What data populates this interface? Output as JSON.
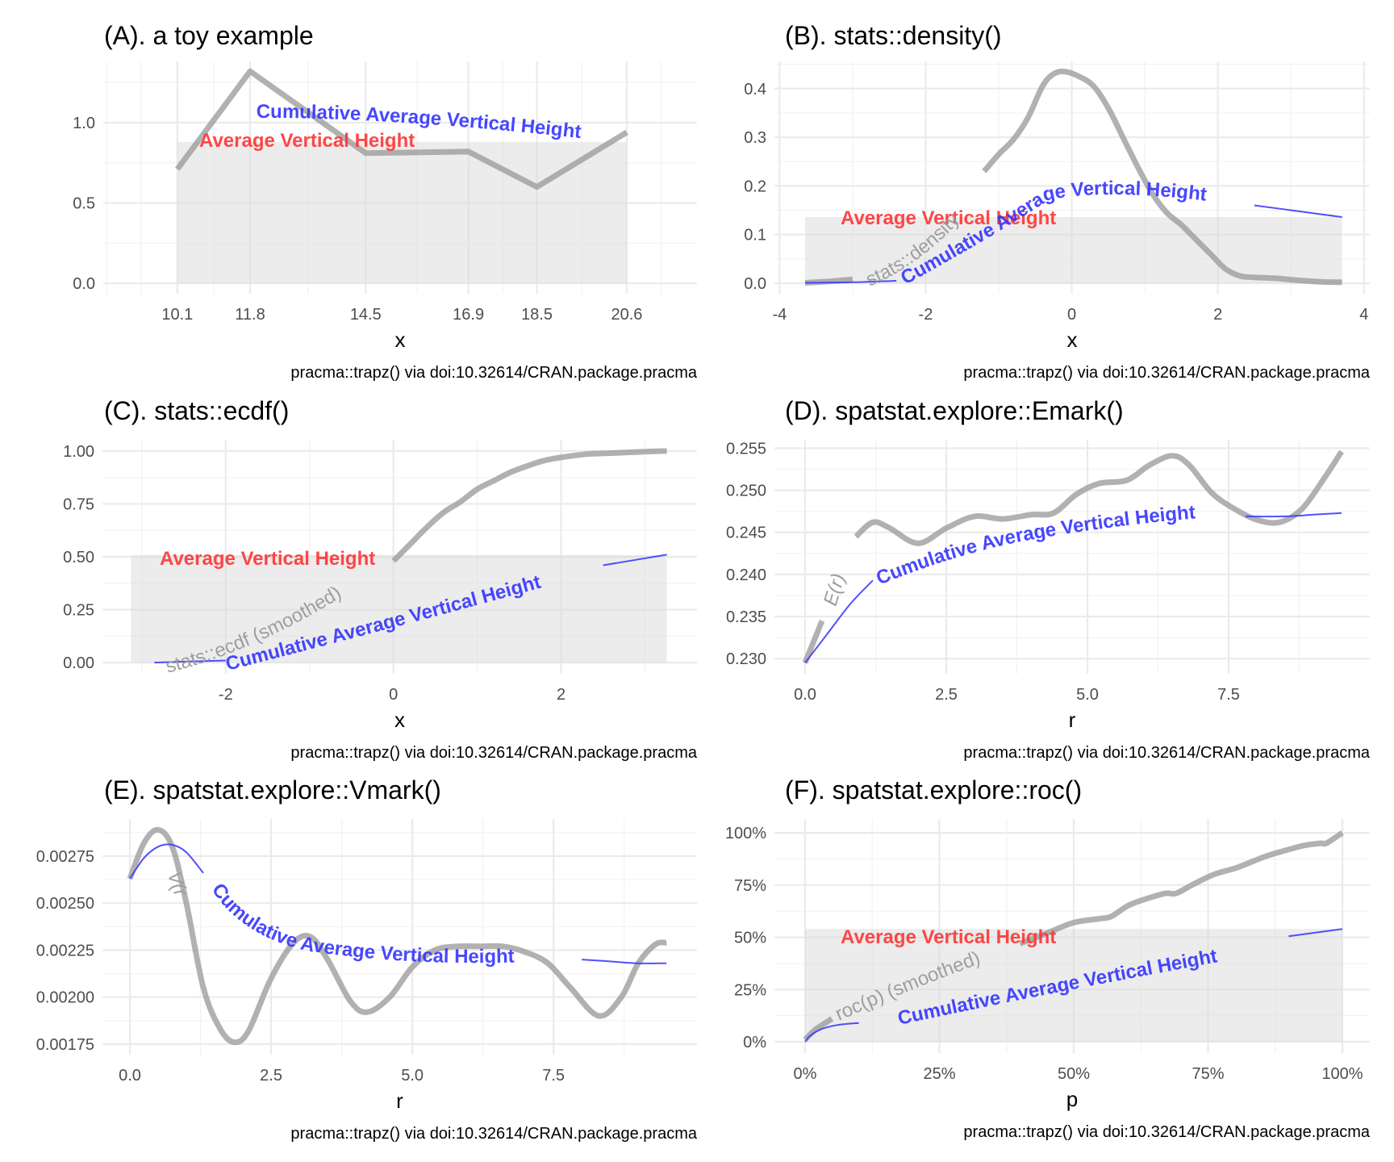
{
  "figure": {
    "caption": "pracma::trapz() via doi:10.32614/CRAN.package.pracma",
    "colors": {
      "curve": "#9e9e9e",
      "average_area": "#d9d9d9",
      "average_label": "#ff3333",
      "cumulative": "#3333ff",
      "grid": "#ebebeb"
    }
  },
  "chart_data": [
    {
      "id": "A",
      "type": "line",
      "title": "(A). a toy example",
      "xlabel": "x",
      "ylabel": "",
      "caption": "pracma::trapz() via doi:10.32614/CRAN.package.pracma",
      "grid": true,
      "xlim": [
        8.37,
        22.24
      ],
      "ylim": [
        -0.065,
        1.382
      ],
      "xticks": [
        10.1,
        11.8,
        14.5,
        16.9,
        18.5,
        20.6
      ],
      "xtick_labels": [
        "10.1",
        "11.8",
        "14.5",
        "16.9",
        "18.5",
        "20.6"
      ],
      "xminor": [
        8.45,
        9.25,
        10.95,
        13.15,
        15.7,
        17.7,
        19.55,
        21.4
      ],
      "yticks": [
        0.0,
        0.5,
        1.0
      ],
      "ytick_labels": [
        "0.0",
        "0.5",
        "1.0"
      ],
      "yminor": [
        0.25,
        0.75,
        1.25
      ],
      "curve": {
        "name": "",
        "x": [
          10.1,
          11.8,
          14.5,
          16.9,
          18.5,
          20.6
        ],
        "y": [
          0.71,
          1.32,
          0.81,
          0.82,
          0.6,
          0.94
        ]
      },
      "average": {
        "label": "Average Vertical Height",
        "value": 0.88,
        "xrange": [
          10.1,
          20.6
        ]
      },
      "cumulative": {
        "label": "Cumulative Average Vertical Height",
        "x": [],
        "y": []
      },
      "labels": {
        "average_label": "Average Vertical Height",
        "cumulative_label": "Cumulative Average Vertical Height"
      }
    },
    {
      "id": "B",
      "type": "line",
      "title": "(B). stats::density()",
      "xlabel": "x",
      "ylabel": "",
      "caption": "pracma::trapz() via doi:10.32614/CRAN.package.pracma",
      "grid": true,
      "xlim": [
        -4.07,
        4.08
      ],
      "ylim": [
        -0.0216,
        0.456
      ],
      "xticks": [
        -4,
        -2,
        0,
        2,
        4
      ],
      "xtick_labels": [
        "-4",
        "-2",
        "0",
        "2",
        "4"
      ],
      "xminor": [
        -3,
        -1,
        1,
        3
      ],
      "yticks": [
        0.0,
        0.1,
        0.2,
        0.3,
        0.4
      ],
      "ytick_labels": [
        "0.0",
        "0.1",
        "0.2",
        "0.3",
        "0.4"
      ],
      "yminor": [
        0.05,
        0.15,
        0.25,
        0.35,
        0.45
      ],
      "curve": {
        "name": "stats::density",
        "x": [
          -3.65,
          -3.3,
          -3.0,
          -2.7,
          -2.4,
          -2.0,
          -1.7,
          -1.4,
          -1.2,
          -1.0,
          -0.8,
          -0.6,
          -0.4,
          -0.25,
          -0.1,
          0.1,
          0.3,
          0.5,
          0.7,
          0.9,
          1.1,
          1.3,
          1.5,
          1.7,
          1.9,
          2.1,
          2.3,
          2.5,
          2.8,
          3.1,
          3.4,
          3.7
        ],
        "y": [
          0.001,
          0.004,
          0.008,
          0.02,
          0.04,
          0.08,
          0.13,
          0.19,
          0.23,
          0.265,
          0.295,
          0.34,
          0.405,
          0.43,
          0.435,
          0.425,
          0.405,
          0.36,
          0.3,
          0.24,
          0.185,
          0.145,
          0.12,
          0.09,
          0.06,
          0.03,
          0.015,
          0.012,
          0.01,
          0.006,
          0.003,
          0.002
        ]
      },
      "average": {
        "label": "Average Vertical Height",
        "value": 0.136,
        "xrange": [
          -3.65,
          3.7
        ]
      },
      "cumulative": {
        "label": "Cumulative Average Vertical Height",
        "x": [
          -3.65,
          -3.0,
          -2.4,
          -2.0,
          -1.6,
          -1.2,
          -0.8,
          -0.4,
          0.0,
          0.4,
          0.8,
          1.2,
          1.6,
          2.0,
          2.5,
          3.0,
          3.7
        ],
        "y": [
          0.001,
          0.002,
          0.005,
          0.012,
          0.025,
          0.045,
          0.075,
          0.11,
          0.145,
          0.165,
          0.175,
          0.18,
          0.178,
          0.172,
          0.16,
          0.15,
          0.136
        ]
      },
      "labels": {
        "average_label": "Average Vertical Height",
        "cumulative_label": "Cumulative Average Vertical Height",
        "curve_label": "stats::density"
      }
    },
    {
      "id": "C",
      "type": "line",
      "title": "(C). stats::ecdf()",
      "xlabel": "x",
      "ylabel": "",
      "caption": "pracma::trapz() via doi:10.32614/CRAN.package.pracma",
      "grid": true,
      "xlim": [
        -3.47,
        3.62
      ],
      "ylim": [
        -0.053,
        1.053
      ],
      "xticks": [
        -2,
        0,
        2
      ],
      "xtick_labels": [
        "-2",
        "0",
        "2"
      ],
      "xminor": [
        -3,
        -1,
        1,
        3
      ],
      "yticks": [
        0.0,
        0.25,
        0.5,
        0.75,
        1.0
      ],
      "ytick_labels": [
        "0.00",
        "0.25",
        "0.50",
        "0.75",
        "1.00"
      ],
      "yminor": [
        0.125,
        0.375,
        0.625,
        0.875
      ],
      "curve": {
        "name": "stats::ecdf (smoothed)",
        "x": [
          -3.13,
          -2.8,
          -2.4,
          -2.0,
          -1.6,
          -1.2,
          -0.8,
          -0.4,
          -0.15,
          0.0,
          0.2,
          0.4,
          0.6,
          0.8,
          1.0,
          1.2,
          1.4,
          1.6,
          1.8,
          2.0,
          2.3,
          2.6,
          3.0,
          3.26
        ],
        "y": [
          0.0,
          0.005,
          0.02,
          0.05,
          0.09,
          0.15,
          0.23,
          0.33,
          0.41,
          0.48,
          0.56,
          0.64,
          0.71,
          0.76,
          0.82,
          0.86,
          0.9,
          0.93,
          0.955,
          0.97,
          0.985,
          0.99,
          0.997,
          1.0
        ]
      },
      "average": {
        "label": "Average Vertical Height",
        "value": 0.508,
        "xrange": [
          -3.13,
          3.26
        ]
      },
      "cumulative": {
        "label": "Cumulative Average Vertical Height",
        "x": [
          -2.85,
          -2.0,
          -1.5,
          -1.0,
          -0.5,
          0.0,
          0.5,
          1.0,
          1.5,
          2.0,
          2.5,
          3.26
        ],
        "y": [
          0.0,
          0.01,
          0.04,
          0.08,
          0.13,
          0.19,
          0.26,
          0.33,
          0.39,
          0.43,
          0.46,
          0.51
        ]
      },
      "labels": {
        "average_label": "Average Vertical Height",
        "cumulative_label": "Cumulative Average Vertical Height",
        "curve_label": "stats::ecdf (smoothed)"
      }
    },
    {
      "id": "D",
      "type": "line",
      "title": "(D). spatstat.explore::Emark()",
      "xlabel": "r",
      "ylabel": "",
      "caption": "pracma::trapz() via doi:10.32614/CRAN.package.pracma",
      "grid": true,
      "xlim": [
        -0.543,
        10.0
      ],
      "ylim": [
        0.2282,
        0.256
      ],
      "xticks": [
        0.0,
        2.5,
        5.0,
        7.5
      ],
      "xtick_labels": [
        "0.0",
        "2.5",
        "5.0",
        "7.5"
      ],
      "xminor": [
        1.25,
        3.75,
        6.25,
        8.75
      ],
      "yticks": [
        0.23,
        0.235,
        0.24,
        0.245,
        0.25,
        0.255
      ],
      "ytick_labels": [
        "0.230",
        "0.235",
        "0.240",
        "0.245",
        "0.250",
        "0.255"
      ],
      "yminor": [
        0.2325,
        0.2375,
        0.2425,
        0.2475,
        0.2525
      ],
      "curve": {
        "name": "E(r)",
        "x": [
          0.0,
          0.3,
          0.6,
          0.9,
          1.2,
          1.5,
          2.0,
          2.5,
          3.0,
          3.5,
          4.0,
          4.4,
          4.8,
          5.2,
          5.7,
          6.1,
          6.5,
          6.8,
          7.2,
          7.6,
          8.0,
          8.4,
          8.8,
          9.2,
          9.5
        ],
        "y": [
          0.2295,
          0.2345,
          0.2405,
          0.2445,
          0.2462,
          0.2455,
          0.2437,
          0.2455,
          0.2469,
          0.2466,
          0.2471,
          0.2473,
          0.2495,
          0.2508,
          0.2512,
          0.253,
          0.2541,
          0.253,
          0.2497,
          0.2478,
          0.2465,
          0.2462,
          0.2478,
          0.2515,
          0.2546
        ]
      },
      "average": null,
      "cumulative": {
        "label": "Cumulative Average Vertical Height",
        "x": [
          0.0,
          0.4,
          0.8,
          1.2,
          1.6,
          2.0,
          3.0,
          4.0,
          5.0,
          6.0,
          7.0,
          7.8,
          8.5,
          9.0,
          9.5
        ],
        "y": [
          0.2295,
          0.233,
          0.2365,
          0.2393,
          0.241,
          0.2421,
          0.2435,
          0.2443,
          0.2453,
          0.2462,
          0.2467,
          0.2469,
          0.2469,
          0.2471,
          0.2473
        ]
      },
      "labels": {
        "cumulative_label": "Cumulative Average Vertical Height",
        "curve_label": "E(r)"
      }
    },
    {
      "id": "E",
      "type": "line",
      "title": "(E). spatstat.explore::Vmark()",
      "xlabel": "r",
      "ylabel": "",
      "caption": "pracma::trapz() via doi:10.32614/CRAN.package.pracma",
      "grid": true,
      "xlim": [
        -0.486,
        10.04
      ],
      "ylim": [
        0.001694,
        0.002947
      ],
      "xticks": [
        0.0,
        2.5,
        5.0,
        7.5
      ],
      "xtick_labels": [
        "0.0",
        "2.5",
        "5.0",
        "7.5"
      ],
      "xminor": [
        1.25,
        3.75,
        6.25,
        8.75
      ],
      "yticks": [
        0.00175,
        0.002,
        0.00225,
        0.0025,
        0.00275
      ],
      "ytick_labels": [
        "0.00175",
        "0.00200",
        "0.00225",
        "0.00250",
        "0.00275"
      ],
      "yminor": [
        0.001875,
        0.002125,
        0.002375,
        0.002625,
        0.002875
      ],
      "curve": {
        "name": "V(r)",
        "x": [
          0.0,
          0.25,
          0.5,
          0.75,
          1.0,
          1.3,
          1.6,
          1.85,
          2.1,
          2.5,
          2.9,
          3.2,
          3.5,
          3.9,
          4.2,
          4.6,
          5.0,
          5.4,
          5.8,
          6.2,
          6.6,
          7.0,
          7.4,
          7.8,
          8.3,
          8.7,
          9.0,
          9.3,
          9.5
        ],
        "y": [
          0.00263,
          0.00282,
          0.00289,
          0.0028,
          0.0025,
          0.00205,
          0.00183,
          0.00176,
          0.00182,
          0.0021,
          0.00229,
          0.00232,
          0.0022,
          0.00198,
          0.00192,
          0.002,
          0.00216,
          0.00225,
          0.00227,
          0.00227,
          0.00227,
          0.00224,
          0.00218,
          0.00205,
          0.0019,
          0.002,
          0.00218,
          0.00228,
          0.00229
        ]
      },
      "average": null,
      "cumulative": {
        "label": "Cumulative Average Vertical Height",
        "x": [
          0.0,
          0.25,
          0.5,
          0.75,
          1.0,
          1.3,
          1.6,
          2.0,
          2.5,
          3.0,
          3.5,
          4.0,
          4.5,
          5.0,
          5.5,
          6.0,
          6.5,
          7.0,
          7.5,
          8.0,
          8.5,
          9.0,
          9.5
        ],
        "y": [
          0.00263,
          0.00274,
          0.0028,
          0.00281,
          0.00277,
          0.00266,
          0.00255,
          0.00244,
          0.00236,
          0.00231,
          0.00228,
          0.00226,
          0.00225,
          0.00224,
          0.00224,
          0.00224,
          0.00224,
          0.00223,
          0.00222,
          0.0022,
          0.00219,
          0.00218,
          0.00218
        ]
      },
      "labels": {
        "cumulative_label": "Cumulative Average Vertical Height",
        "curve_label": "V(r)"
      }
    },
    {
      "id": "F",
      "type": "line",
      "title": "(F). spatstat.explore::roc()",
      "xlabel": "p",
      "ylabel": "",
      "caption": "pracma::trapz() via doi:10.32614/CRAN.package.pracma",
      "grid": true,
      "xlim": [
        -0.057,
        1.051
      ],
      "ylim": [
        -0.054,
        1.066
      ],
      "xticks": [
        0.0,
        0.25,
        0.5,
        0.75,
        1.0
      ],
      "xtick_labels": [
        "0%",
        "25%",
        "50%",
        "75%",
        "100%"
      ],
      "xminor": [
        0.125,
        0.375,
        0.625,
        0.875
      ],
      "yticks": [
        0.0,
        0.25,
        0.5,
        0.75,
        1.0
      ],
      "ytick_labels": [
        "0%",
        "25%",
        "50%",
        "75%",
        "100%"
      ],
      "yminor": [
        0.125,
        0.375,
        0.625,
        0.875
      ],
      "curve": {
        "name": "roc(p) (smoothed)",
        "x": [
          0.0,
          0.02,
          0.05,
          0.1,
          0.2,
          0.3,
          0.4,
          0.45,
          0.5,
          0.55,
          0.57,
          0.6,
          0.63,
          0.67,
          0.69,
          0.72,
          0.76,
          0.8,
          0.83,
          0.86,
          0.9,
          0.93,
          0.96,
          0.97,
          1.0
        ],
        "y": [
          0.01,
          0.06,
          0.11,
          0.18,
          0.3,
          0.4,
          0.47,
          0.52,
          0.57,
          0.59,
          0.6,
          0.65,
          0.68,
          0.71,
          0.71,
          0.75,
          0.8,
          0.83,
          0.86,
          0.89,
          0.92,
          0.94,
          0.95,
          0.95,
          1.0
        ]
      },
      "average": {
        "label": "Average Vertical Height",
        "value": 0.54,
        "xrange": [
          0.0,
          1.0
        ]
      },
      "cumulative": {
        "label": "Cumulative Average Vertical Height",
        "x": [
          0.0,
          0.01,
          0.03,
          0.06,
          0.1,
          0.15,
          0.2,
          0.3,
          0.4,
          0.5,
          0.6,
          0.7,
          0.8,
          0.9,
          1.0
        ],
        "y": [
          0.0,
          0.03,
          0.06,
          0.08,
          0.09,
          0.11,
          0.14,
          0.21,
          0.28,
          0.34,
          0.39,
          0.43,
          0.47,
          0.505,
          0.54
        ]
      },
      "labels": {
        "average_label": "Average Vertical Height",
        "cumulative_label": "Cumulative Average Vertical Height",
        "curve_label": "roc(p) (smoothed)"
      }
    }
  ]
}
